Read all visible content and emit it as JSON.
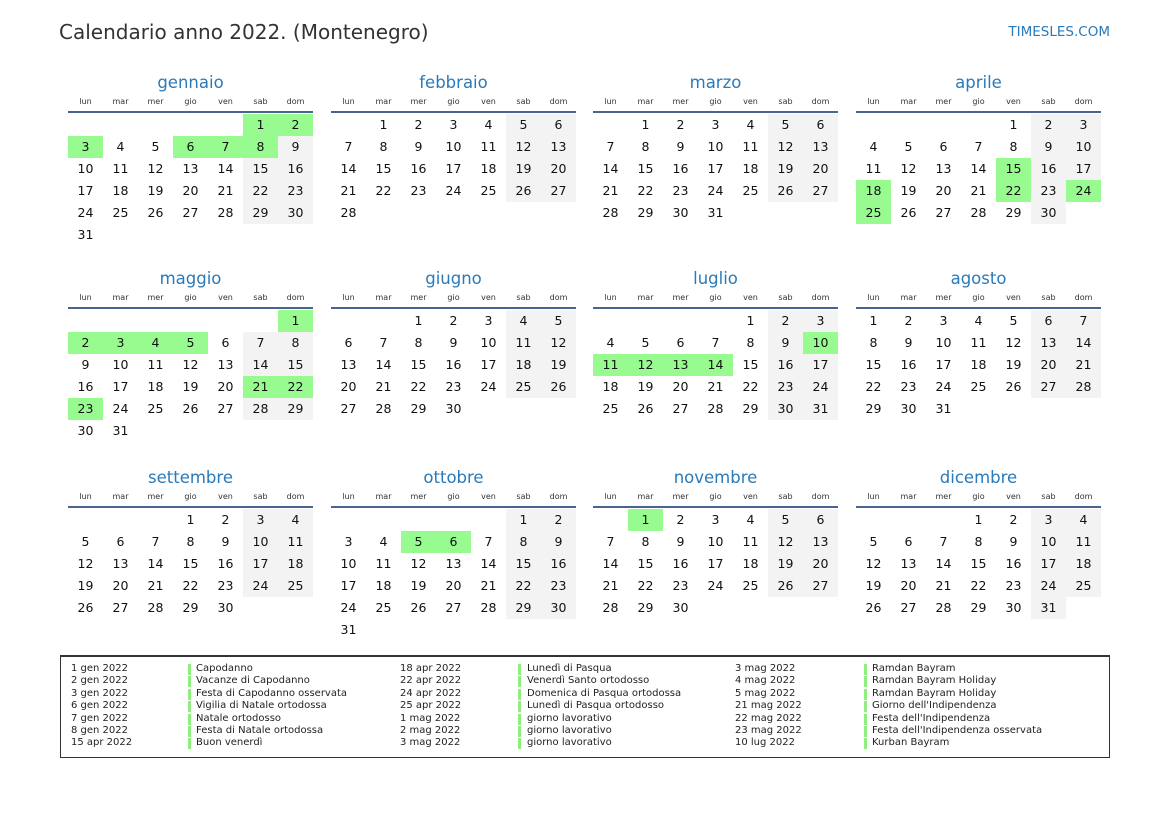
{
  "header": {
    "title": "Calendario anno 2022. (Montenegro)",
    "site": "TIMESLES.COM"
  },
  "weekdays": [
    "lun",
    "mar",
    "mer",
    "gio",
    "ven",
    "sab",
    "dom"
  ],
  "colors": {
    "holiday": "#98fb8f",
    "weekend": "#f3f3f3",
    "accent": "#2a7ab9"
  },
  "months": [
    {
      "name": "gennaio",
      "first_weekday": 5,
      "days": 31,
      "holidays": [
        1,
        2,
        3,
        6,
        7,
        8
      ]
    },
    {
      "name": "febbraio",
      "first_weekday": 1,
      "days": 28,
      "holidays": []
    },
    {
      "name": "marzo",
      "first_weekday": 1,
      "days": 31,
      "holidays": []
    },
    {
      "name": "aprile",
      "first_weekday": 4,
      "days": 30,
      "holidays": [
        15,
        18,
        22,
        24,
        25
      ]
    },
    {
      "name": "maggio",
      "first_weekday": 6,
      "days": 31,
      "holidays": [
        1,
        2,
        3,
        4,
        5,
        21,
        22,
        23
      ]
    },
    {
      "name": "giugno",
      "first_weekday": 2,
      "days": 30,
      "holidays": []
    },
    {
      "name": "luglio",
      "first_weekday": 4,
      "days": 31,
      "holidays": [
        10,
        11,
        12,
        13,
        14
      ]
    },
    {
      "name": "agosto",
      "first_weekday": 0,
      "days": 31,
      "holidays": []
    },
    {
      "name": "settembre",
      "first_weekday": 3,
      "days": 30,
      "holidays": []
    },
    {
      "name": "ottobre",
      "first_weekday": 5,
      "days": 31,
      "holidays": [
        5,
        6
      ]
    },
    {
      "name": "novembre",
      "first_weekday": 1,
      "days": 30,
      "holidays": [
        1
      ]
    },
    {
      "name": "dicembre",
      "first_weekday": 3,
      "days": 31,
      "holidays": []
    }
  ],
  "legend": [
    {
      "date": "1 gen 2022",
      "name": "Capodanno"
    },
    {
      "date": "2 gen 2022",
      "name": "Vacanze di Capodanno"
    },
    {
      "date": "3 gen 2022",
      "name": "Festa di Capodanno osservata"
    },
    {
      "date": "6 gen 2022",
      "name": "Vigilia di Natale ortodossa"
    },
    {
      "date": "7 gen 2022",
      "name": "Natale ortodosso"
    },
    {
      "date": "8 gen 2022",
      "name": "Festa di Natale ortodossa"
    },
    {
      "date": "15 apr 2022",
      "name": "Buon venerdì"
    },
    {
      "date": "18 apr 2022",
      "name": "Lunedì di Pasqua"
    },
    {
      "date": "22 apr 2022",
      "name": "Venerdì Santo ortodosso"
    },
    {
      "date": "24 apr 2022",
      "name": "Domenica di Pasqua ortodossa"
    },
    {
      "date": "25 apr 2022",
      "name": "Lunedì di Pasqua ortodosso"
    },
    {
      "date": "1 mag 2022",
      "name": "giorno lavorativo"
    },
    {
      "date": "2 mag 2022",
      "name": "giorno lavorativo"
    },
    {
      "date": "3 mag 2022",
      "name": "giorno lavorativo"
    },
    {
      "date": "3 mag 2022",
      "name": "Ramdan Bayram"
    },
    {
      "date": "4 mag 2022",
      "name": "Ramdan Bayram Holiday"
    },
    {
      "date": "5 mag 2022",
      "name": "Ramdan Bayram Holiday"
    },
    {
      "date": "21 mag 2022",
      "name": "Giorno dell'Indipendenza"
    },
    {
      "date": "22 mag 2022",
      "name": "Festa dell'Indipendenza"
    },
    {
      "date": "23 mag 2022",
      "name": "Festa dell'Indipendenza osservata"
    },
    {
      "date": "10 lug 2022",
      "name": "Kurban Bayram"
    }
  ]
}
